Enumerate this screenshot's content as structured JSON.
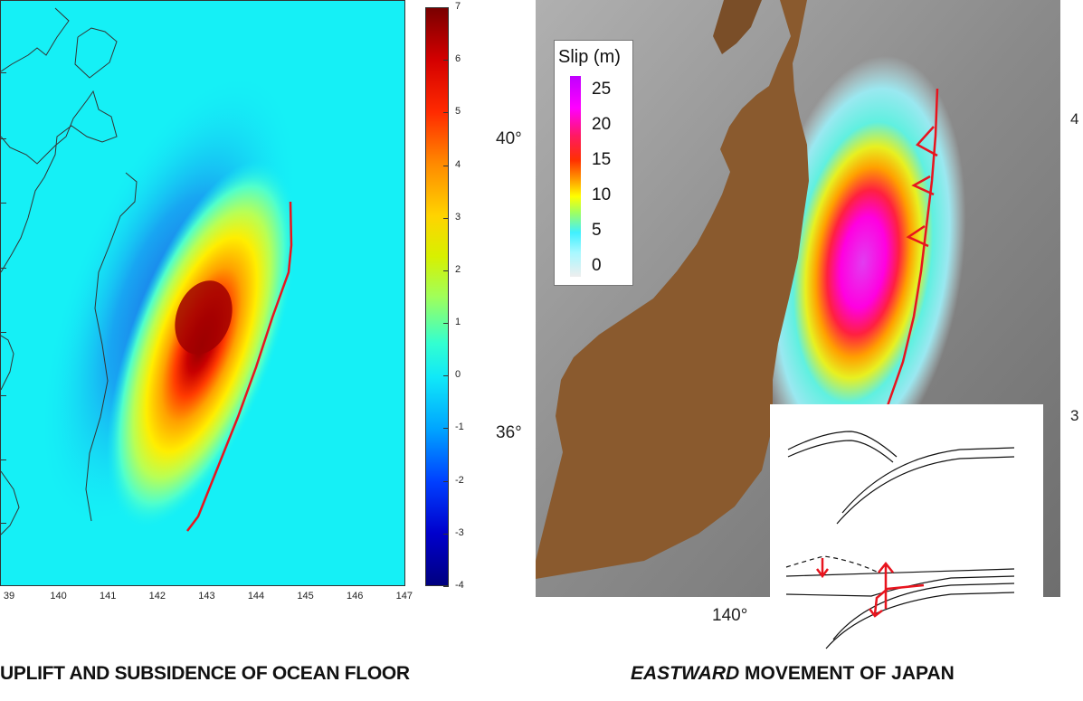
{
  "left_panel": {
    "colorbar_ticks": [
      "7",
      "6",
      "5",
      "4",
      "3",
      "2",
      "1",
      "0",
      "-1",
      "-2",
      "-3",
      "-4"
    ],
    "x_ticks": [
      "39",
      "140",
      "141",
      "142",
      "143",
      "144",
      "145",
      "146",
      "147"
    ],
    "caption": "UPLIFT AND SUBSIDENCE OF OCEAN FLOOR",
    "colors": {
      "background": "#15f0f6",
      "trench_line": "#e8141e"
    }
  },
  "right_panel": {
    "legend_title": "Slip (m)",
    "legend_labels": [
      "25",
      "20",
      "15",
      "10",
      "5",
      "0"
    ],
    "lat_labels": {
      "north": "40°",
      "south": "36°"
    },
    "lon_label": "140°",
    "edge_labels": {
      "top": "4",
      "bottom": "3"
    },
    "caption_emphasis": "EASTWARD",
    "caption_rest": " MOVEMENT OF JAPAN",
    "colors": {
      "land": "#8a5a2e",
      "sea": "#8e8e8e",
      "fault": "#e8141e"
    }
  }
}
